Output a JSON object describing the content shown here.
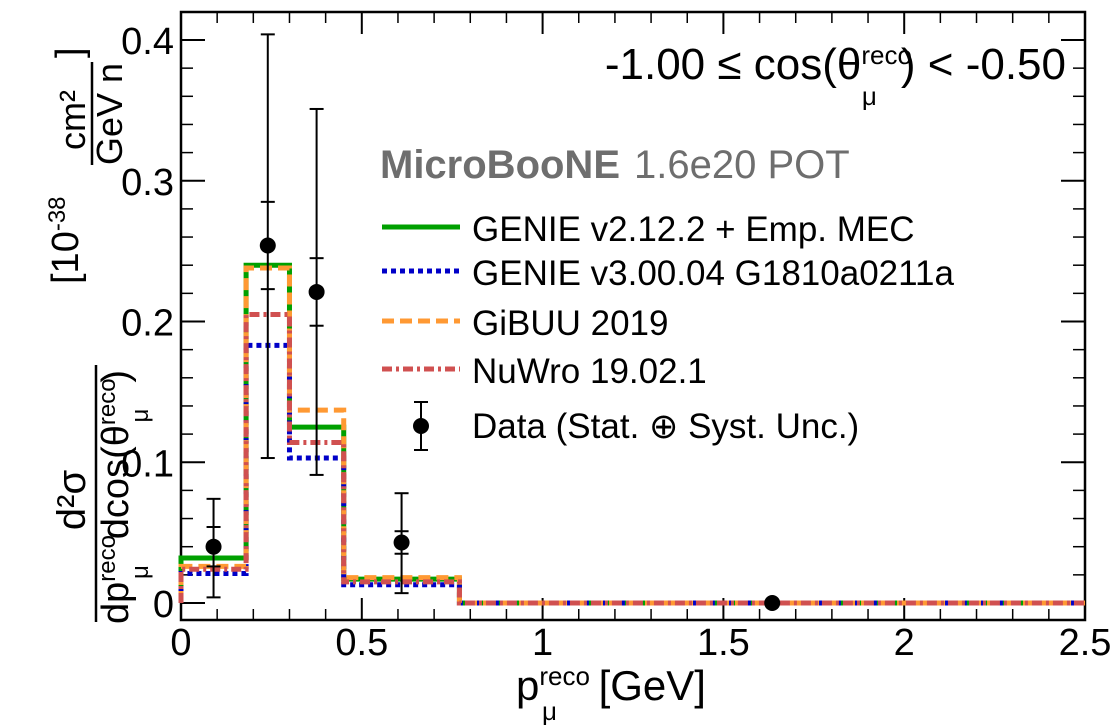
{
  "chart_data": {
    "type": "line",
    "title": "",
    "annotation": {
      "prefix": "-1.00 ≤ cos(θ",
      "sup": "reco",
      "sub": "μ",
      "suffix": ") < -0.50"
    },
    "experiment": {
      "name": "MicroBooNE",
      "pot": "1.6e20 POT"
    },
    "xlabel": {
      "main": "p",
      "sup": "reco",
      "sub": "μ",
      "unit": " [GeV]"
    },
    "ylabel": {
      "numerator": "d²σ",
      "denominator": "dp",
      "denominator_sup": "reco",
      "denominator_sub": "μ",
      "denominator_rest": "dcos(θ",
      "denominator_rest_sup": "reco",
      "denominator_rest_sub": "μ",
      "denominator_close": ")",
      "units_prefix": "[10",
      "units_exp": "-38",
      "units_frac_num": "cm²",
      "units_frac_den": "GeV n",
      "units_close": "]"
    },
    "xlim": [
      0,
      2.5
    ],
    "ylim": [
      0,
      0.42
    ],
    "x_ticks": [
      "0",
      "0.5",
      "1",
      "1.5",
      "2",
      "2.5"
    ],
    "y_ticks": [
      "0",
      "0.1",
      "0.2",
      "0.3",
      "0.4"
    ],
    "bin_edges": [
      0,
      0.18,
      0.3,
      0.45,
      0.77,
      2.5
    ],
    "series": [
      {
        "name": "GENIE v2.12.2 + Emp. MEC",
        "color": "#00a000",
        "dash": "solid",
        "values": [
          0.032,
          0.24,
          0.125,
          0.017,
          0.0
        ]
      },
      {
        "name": "GENIE v3.00.04 G1810a0211a",
        "color": "#0000c8",
        "dash": "dotted",
        "values": [
          0.021,
          0.183,
          0.103,
          0.013,
          0.0
        ]
      },
      {
        "name": "GiBUU 2019",
        "color": "#ff9933",
        "dash": "dashed",
        "values": [
          0.026,
          0.238,
          0.137,
          0.018,
          0.0
        ]
      },
      {
        "name": "NuWro 19.02.1",
        "color": "#d05050",
        "dash": "dashdot",
        "values": [
          0.024,
          0.205,
          0.114,
          0.015,
          0.0
        ]
      }
    ],
    "data": {
      "name": "Data (Stat. ⊕ Syst. Unc.)",
      "points": [
        {
          "x": 0.09,
          "y": 0.04,
          "stat": [
            0.026,
            0.054
          ],
          "total": [
            0.004,
            0.074
          ]
        },
        {
          "x": 0.24,
          "y": 0.254,
          "stat": [
            0.223,
            0.285
          ],
          "total": [
            0.103,
            0.404
          ]
        },
        {
          "x": 0.375,
          "y": 0.221,
          "stat": [
            0.197,
            0.245
          ],
          "total": [
            0.091,
            0.351
          ]
        },
        {
          "x": 0.61,
          "y": 0.043,
          "stat": [
            0.035,
            0.051
          ],
          "total": [
            0.007,
            0.078
          ]
        },
        {
          "x": 1.635,
          "y": 0.0,
          "stat": [
            0.0,
            0.0
          ],
          "total": [
            0.0,
            0.0
          ]
        }
      ]
    },
    "grid": false,
    "legend_position": "top-right"
  }
}
